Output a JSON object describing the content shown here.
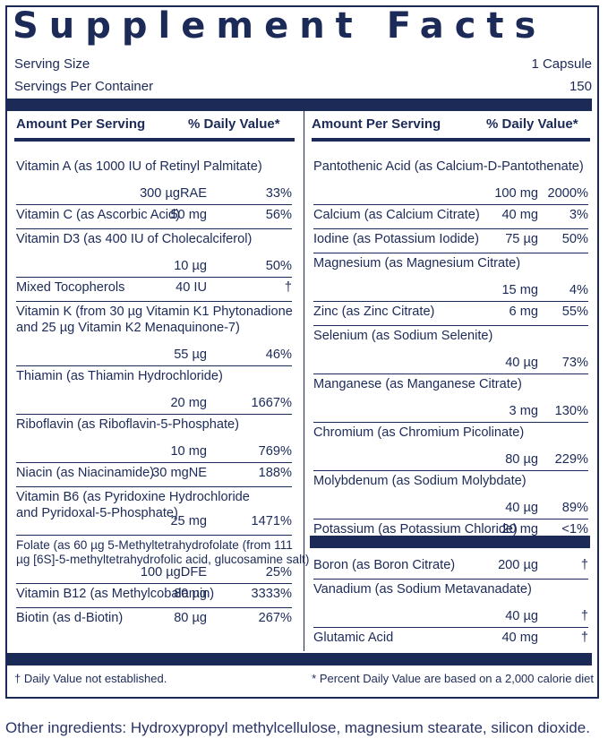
{
  "title": "Supplement Facts",
  "serving_size_label": "Serving Size",
  "serving_size_value": "1 Capsule",
  "servings_label": "Servings Per Container",
  "servings_value": "150",
  "col_header_amount": "Amount Per Serving",
  "col_header_dv": "% Daily Value*",
  "left": [
    {
      "name": "Vitamin A (as 1000 IU of Retinyl Palmitate)",
      "amount": "300 µgRAE",
      "dv": "33%"
    },
    {
      "name": "Vitamin C (as Ascorbic Acid)",
      "amount": "50 mg",
      "dv": "56%"
    },
    {
      "name": "Vitamin D3 (as 400 IU of Cholecalciferol)",
      "amount": "10 µg",
      "dv": "50%"
    },
    {
      "name": "Mixed Tocopherols",
      "amount": "40 IU",
      "dv": "†"
    },
    {
      "name": "Vitamin K (from 30 µg Vitamin K1 Phytonadione",
      "name2": "and 25 µg Vitamin K2 Menaquinone-7)",
      "amount": "55 µg",
      "dv": "46%"
    },
    {
      "name": "Thiamin (as Thiamin Hydrochloride)",
      "amount": "20 mg",
      "dv": "1667%"
    },
    {
      "name": "Riboflavin (as Riboflavin-5-Phosphate)",
      "amount": "10 mg",
      "dv": "769%"
    },
    {
      "name": "Niacin (as Niacinamide)",
      "amount": "30 mgNE",
      "dv": "188%"
    },
    {
      "name": "Vitamin B6 (as Pyridoxine Hydrochloride",
      "name2": "and Pyridoxal-5-Phosphate)",
      "amount": "25 mg",
      "dv": "1471%"
    },
    {
      "name": "Folate (as 60 µg 5-Methyltetrahydrofolate (from 111",
      "name2": "µg [6S]-5-methyltetrahydrofolic acid, glucosamine salt)",
      "amount": "100 µgDFE",
      "dv": "25%"
    },
    {
      "name": "Vitamin B12 (as Methylcobalamin)",
      "amount": "80 µg",
      "dv": "3333%"
    },
    {
      "name": "Biotin (as d-Biotin)",
      "amount": "80 µg",
      "dv": "267%"
    }
  ],
  "right": [
    {
      "name": "Pantothenic Acid (as Calcium-D-Pantothenate)",
      "amount": "100 mg",
      "dv": "2000%"
    },
    {
      "name": "Calcium (as Calcium Citrate)",
      "amount": "40 mg",
      "dv": "3%"
    },
    {
      "name": "Iodine (as Potassium Iodide)",
      "amount": "75 µg",
      "dv": "50%"
    },
    {
      "name": "Magnesium (as Magnesium Citrate)",
      "amount": "15 mg",
      "dv": "4%"
    },
    {
      "name": "Zinc (as Zinc Citrate)",
      "amount": "6 mg",
      "dv": "55%"
    },
    {
      "name": "Selenium (as Sodium Selenite)",
      "amount": "40 µg",
      "dv": "73%"
    },
    {
      "name": "Manganese (as Manganese Citrate)",
      "amount": "3 mg",
      "dv": "130%"
    },
    {
      "name": "Chromium (as Chromium Picolinate)",
      "amount": "80 µg",
      "dv": "229%"
    },
    {
      "name": "Molybdenum (as Sodium Molybdate)",
      "amount": "40 µg",
      "dv": "89%"
    },
    {
      "name": "Potassium (as Potassium Chloride)",
      "amount": "20 mg",
      "dv": "<1%"
    }
  ],
  "right2": [
    {
      "name": "Boron (as Boron Citrate)",
      "amount": "200 µg",
      "dv": "†"
    },
    {
      "name": "Vanadium (as Sodium Metavanadate)",
      "amount": "40 µg",
      "dv": "†"
    },
    {
      "name": "Glutamic Acid",
      "amount": "40 mg",
      "dv": "†"
    }
  ],
  "footnote_left": "† Daily Value not established.",
  "footnote_right": "* Percent Daily Value are based on a 2,000 calorie diet",
  "other_ingredients": "Other ingredients: Hydroxypropyl methylcellulose, magnesium stearate, silicon dioxide.",
  "colors": {
    "navy": "#1c2a58"
  }
}
